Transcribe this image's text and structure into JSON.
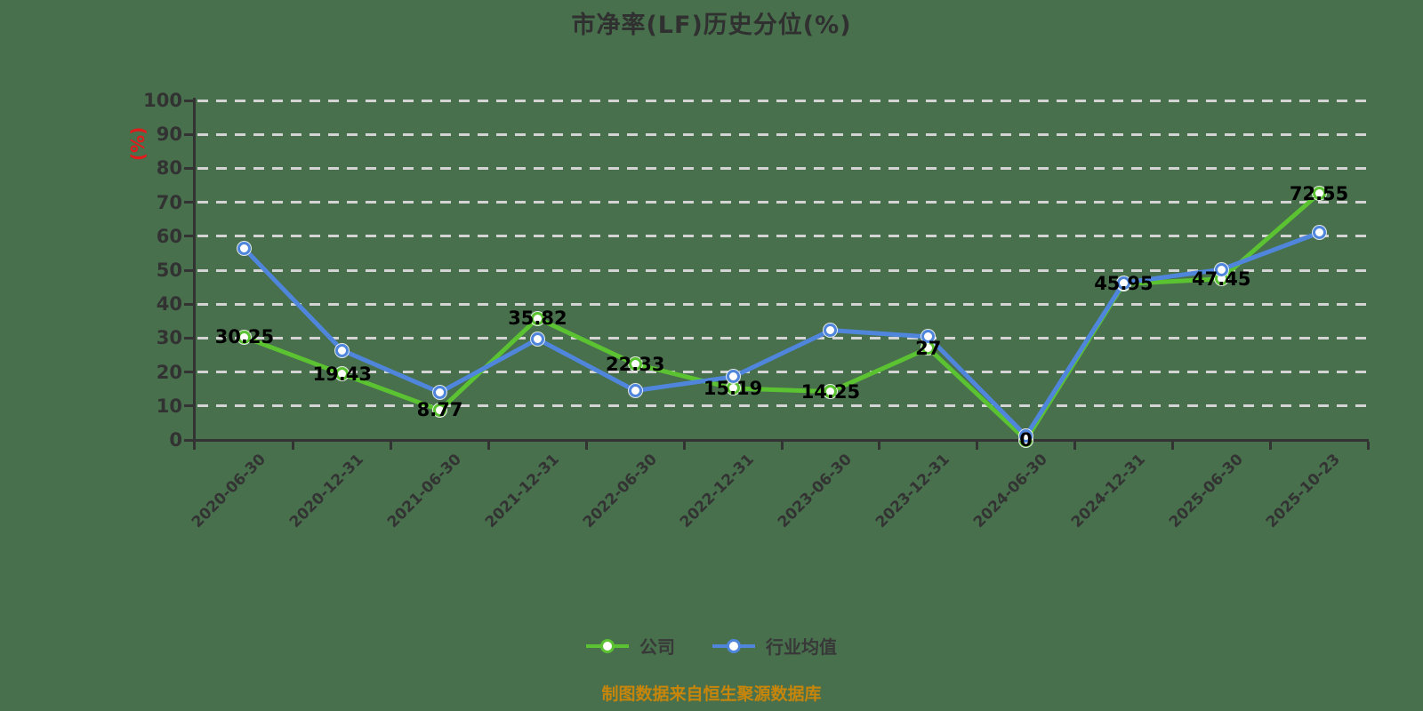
{
  "title": "市净率(LF)历史分位(%)",
  "caption": "制图数据来自恒生聚源数据库",
  "y_axis": {
    "unit_label": "(%)",
    "min": 0,
    "max": 100,
    "step": 10,
    "tick_labels": [
      "0",
      "10",
      "20",
      "30",
      "40",
      "50",
      "60",
      "70",
      "80",
      "90",
      "100"
    ]
  },
  "chart_data": {
    "type": "line",
    "title": "市净率(LF)历史分位(%)",
    "xlabel": "",
    "ylabel": "(%)",
    "ylim": [
      0,
      100
    ],
    "grid": true,
    "grid_style": "dashed",
    "legend_position": "bottom",
    "categories": [
      "2020-06-30",
      "2020-12-31",
      "2021-06-30",
      "2021-12-31",
      "2022-06-30",
      "2022-12-31",
      "2023-06-30",
      "2023-12-31",
      "2024-06-30",
      "2024-12-31",
      "2025-06-30",
      "2025-10-23"
    ],
    "series": [
      {
        "name": "公司",
        "semantic": "company",
        "color": "#5bc232",
        "values": [
          30.25,
          19.43,
          8.77,
          35.82,
          22.33,
          15.19,
          14.25,
          27,
          0,
          45.95,
          47.45,
          72.55
        ],
        "data_labels": [
          "30.25",
          "19.43",
          "8.77",
          "35.82",
          "22.33",
          "15.19",
          "14.25",
          "27",
          "0",
          "45.95",
          "47.45",
          "72.55"
        ],
        "show_labels": true
      },
      {
        "name": "行业均值",
        "semantic": "industry-average",
        "color": "#4f86dc",
        "values": [
          56.3,
          26.4,
          14,
          29.7,
          14.5,
          18.6,
          32.3,
          30.4,
          1.2,
          46.3,
          50.2,
          61
        ],
        "show_labels": false
      }
    ]
  },
  "legend": {
    "items": [
      {
        "label": "公司",
        "color": "#5bc232"
      },
      {
        "label": "行业均值",
        "color": "#4f86dc"
      }
    ]
  },
  "colors": {
    "background": "#48704d",
    "grid": "#d4d4d4",
    "axis": "#333333",
    "tick_text": "#323232",
    "value_label": "#000000",
    "unit_label": "#e11b1b",
    "caption": "#c7860b",
    "marker_fill": "#ffffff"
  }
}
